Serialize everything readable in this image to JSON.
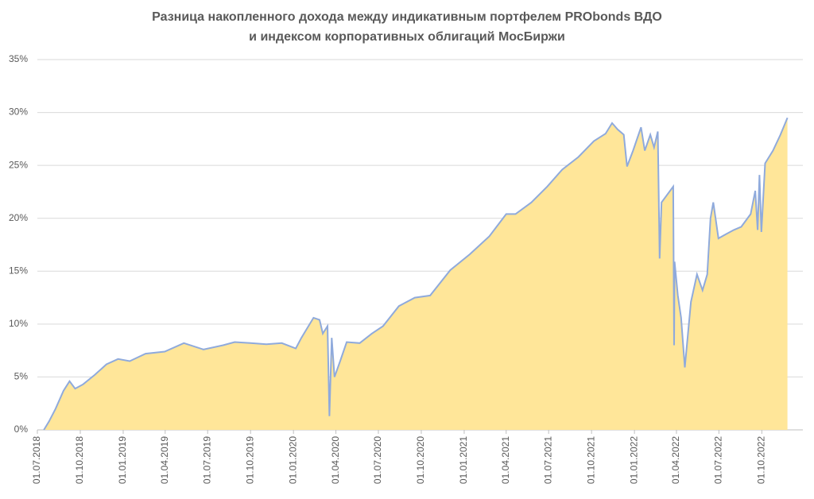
{
  "chart_data": {
    "type": "area",
    "title": [
      "Разница накопленного дохода между индикативным портфелем PRObonds ВДО",
      "и индексом корпоративных облигаций МосБиржи"
    ],
    "x": [
      "2018-07-15",
      "2018-07-26",
      "2018-08-09",
      "2018-08-26",
      "2018-09-08",
      "2018-09-20",
      "2018-10-07",
      "2018-11-01",
      "2018-11-26",
      "2018-12-21",
      "2019-01-15",
      "2019-02-18",
      "2019-03-31",
      "2019-05-11",
      "2019-06-22",
      "2019-08-03",
      "2019-08-28",
      "2019-10-01",
      "2019-11-04",
      "2019-12-07",
      "2020-01-06",
      "2020-01-18",
      "2020-02-13",
      "2020-02-26",
      "2020-03-04",
      "2020-03-14",
      "2020-03-18",
      "2020-03-23",
      "2020-03-29",
      "2020-04-10",
      "2020-04-24",
      "2020-05-22",
      "2020-06-17",
      "2020-07-11",
      "2020-08-14",
      "2020-09-17",
      "2020-10-20",
      "2020-12-02",
      "2021-01-13",
      "2021-02-24",
      "2021-04-01",
      "2021-04-21",
      "2021-05-25",
      "2021-06-28",
      "2021-07-30",
      "2021-09-03",
      "2021-10-06",
      "2021-10-31",
      "2021-11-14",
      "2021-11-26",
      "2021-12-09",
      "2021-12-16",
      "2021-12-29",
      "2022-01-15",
      "2022-01-23",
      "2022-02-04",
      "2022-02-12",
      "2022-02-20",
      "2022-02-24",
      "2022-02-28",
      "2022-03-25",
      "2022-03-27",
      "2022-03-28",
      "2022-04-04",
      "2022-04-11",
      "2022-04-19",
      "2022-05-02",
      "2022-05-15",
      "2022-05-27",
      "2022-06-06",
      "2022-06-13",
      "2022-06-19",
      "2022-06-30",
      "2022-07-16",
      "2022-08-02",
      "2022-08-18",
      "2022-09-07",
      "2022-09-17",
      "2022-09-22",
      "2022-09-26",
      "2022-09-30",
      "2022-10-08",
      "2022-10-25",
      "2022-11-10",
      "2022-11-25"
    ],
    "series": [
      {
        "color": "#8faadc",
        "fill": "#ffe699",
        "values": [
          0,
          0.8,
          2.0,
          3.7,
          4.6,
          3.9,
          4.3,
          5.2,
          6.2,
          6.7,
          6.5,
          7.2,
          7.4,
          8.2,
          7.6,
          8.0,
          8.3,
          8.2,
          8.1,
          8.2,
          7.7,
          8.7,
          10.6,
          10.4,
          9.1,
          9.8,
          1.3,
          8.7,
          5.0,
          6.5,
          8.3,
          8.2,
          9.1,
          9.8,
          11.7,
          12.5,
          12.7,
          15.1,
          16.6,
          18.3,
          20.4,
          20.4,
          21.5,
          23.0,
          24.6,
          25.8,
          27.3,
          28.0,
          29.0,
          28.4,
          27.9,
          24.9,
          26.4,
          28.6,
          26.4,
          27.9,
          26.7,
          28.2,
          16.2,
          21.5,
          23.0,
          8.0,
          15.9,
          12.7,
          10.6,
          5.9,
          12.1,
          14.7,
          13.2,
          14.7,
          20.0,
          21.5,
          18.1,
          18.5,
          18.9,
          19.2,
          20.4,
          22.6,
          18.9,
          24.1,
          18.7,
          25.2,
          26.4,
          27.9,
          29.5
        ]
      }
    ],
    "xlim": [
      "2018-07-01",
      "2022-12-28"
    ],
    "xticks": [
      {
        "value": "2018-07-01",
        "label": "01.07.2018"
      },
      {
        "value": "2018-10-01",
        "label": "01.10.2018"
      },
      {
        "value": "2019-01-01",
        "label": "01.01.2019"
      },
      {
        "value": "2019-04-01",
        "label": "01.04.2019"
      },
      {
        "value": "2019-07-01",
        "label": "01.07.2019"
      },
      {
        "value": "2019-10-01",
        "label": "01.10.2019"
      },
      {
        "value": "2020-01-01",
        "label": "01.01.2020"
      },
      {
        "value": "2020-04-01",
        "label": "01.04.2020"
      },
      {
        "value": "2020-07-01",
        "label": "01.07.2020"
      },
      {
        "value": "2020-10-01",
        "label": "01.10.2020"
      },
      {
        "value": "2021-01-01",
        "label": "01.01.2021"
      },
      {
        "value": "2021-04-01",
        "label": "01.04.2021"
      },
      {
        "value": "2021-07-01",
        "label": "01.07.2021"
      },
      {
        "value": "2021-10-01",
        "label": "01.10.2021"
      },
      {
        "value": "2022-01-01",
        "label": "01.01.2022"
      },
      {
        "value": "2022-04-01",
        "label": "01.04.2022"
      },
      {
        "value": "2022-07-01",
        "label": "01.07.2022"
      },
      {
        "value": "2022-10-01",
        "label": "01.10.2022"
      }
    ],
    "ylim": [
      0,
      35
    ],
    "yticks": [
      {
        "value": 0,
        "label": "0%"
      },
      {
        "value": 5,
        "label": "5%"
      },
      {
        "value": 10,
        "label": "10%"
      },
      {
        "value": 15,
        "label": "15%"
      },
      {
        "value": 20,
        "label": "20%"
      },
      {
        "value": 25,
        "label": "25%"
      },
      {
        "value": 30,
        "label": "30%"
      },
      {
        "value": 35,
        "label": "35%"
      }
    ],
    "grid": true
  }
}
